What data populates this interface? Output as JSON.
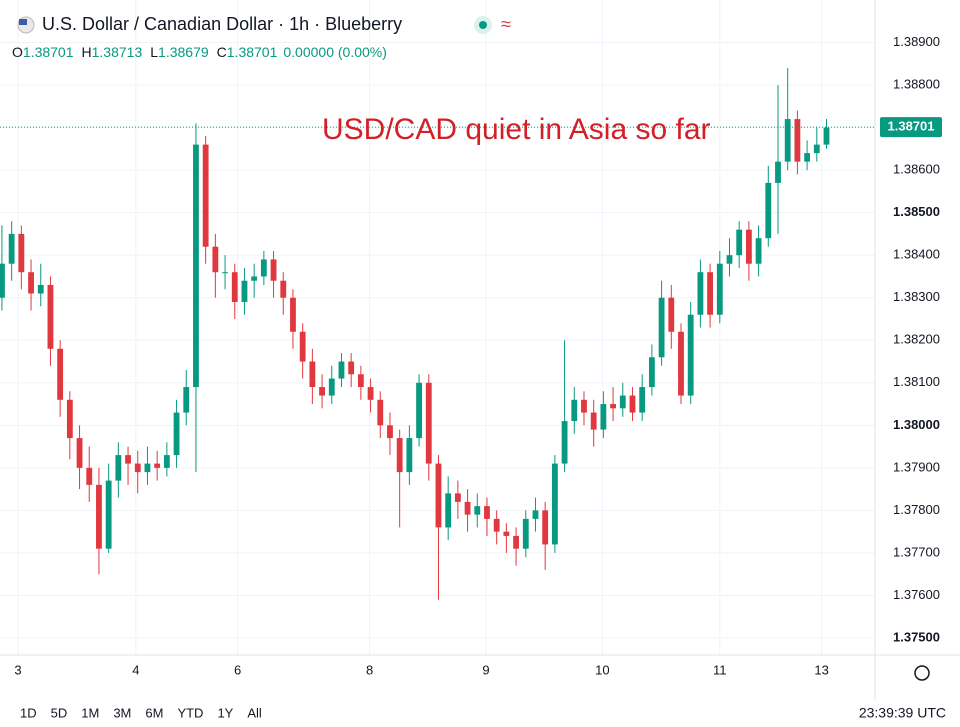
{
  "header": {
    "title": "U.S. Dollar / Canadian Dollar · 1h · Blueberry",
    "ohlc": [
      {
        "key": "O",
        "value": "1.38701"
      },
      {
        "key": "H",
        "value": "1.38713"
      },
      {
        "key": "L",
        "value": "1.38679"
      },
      {
        "key": "C",
        "value": "1.38701"
      }
    ],
    "change": "0.00000 (0.00%)"
  },
  "chart_data": {
    "type": "candlestick",
    "annotation": "USD/CAD quiet in Asia so far",
    "last_price": 1.38701,
    "up_color": "#089981",
    "down_color": "#e0383e",
    "annotation_color": "#d32027",
    "open": [
      1.383,
      1.3838,
      1.3845,
      1.3836,
      1.3831,
      1.3833,
      1.3818,
      1.3806,
      1.3797,
      1.379,
      1.3786,
      1.3771,
      1.3787,
      1.3793,
      1.3791,
      1.3789,
      1.3791,
      1.379,
      1.3793,
      1.3803,
      1.3809,
      1.3866,
      1.3842,
      1.3836,
      1.3836,
      1.3829,
      1.3834,
      1.3835,
      1.3839,
      1.3834,
      1.383,
      1.3822,
      1.3815,
      1.3809,
      1.3807,
      1.3811,
      1.3815,
      1.3812,
      1.3809,
      1.3806,
      1.38,
      1.3797,
      1.3789,
      1.3797,
      1.381,
      1.3791,
      1.3776,
      1.3784,
      1.3782,
      1.3779,
      1.3781,
      1.3778,
      1.3775,
      1.3774,
      1.3771,
      1.3778,
      1.378,
      1.3772,
      1.3791,
      1.3801,
      1.3806,
      1.3803,
      1.3799,
      1.3805,
      1.3804,
      1.3807,
      1.3803,
      1.3809,
      1.3816,
      1.383,
      1.3822,
      1.3807,
      1.3826,
      1.3836,
      1.3826,
      1.3838,
      1.384,
      1.3846,
      1.3838,
      1.3844,
      1.3857,
      1.3862,
      1.3872,
      1.3862,
      1.3864,
      1.3866
    ],
    "high": [
      1.3847,
      1.3848,
      1.3847,
      1.3839,
      1.3838,
      1.3835,
      1.382,
      1.3808,
      1.38,
      1.3795,
      1.379,
      1.3791,
      1.3796,
      1.3795,
      1.3794,
      1.3795,
      1.3794,
      1.3796,
      1.3806,
      1.3813,
      1.3871,
      1.3868,
      1.3845,
      1.384,
      1.3838,
      1.3837,
      1.3838,
      1.3841,
      1.3841,
      1.3836,
      1.3832,
      1.3824,
      1.3818,
      1.3812,
      1.3814,
      1.3817,
      1.3817,
      1.3814,
      1.3811,
      1.3808,
      1.3803,
      1.3799,
      1.38,
      1.3812,
      1.3812,
      1.3793,
      1.3788,
      1.3787,
      1.3785,
      1.3784,
      1.3783,
      1.378,
      1.3777,
      1.3776,
      1.378,
      1.3783,
      1.3782,
      1.3793,
      1.382,
      1.3809,
      1.3808,
      1.3806,
      1.3808,
      1.3809,
      1.381,
      1.3809,
      1.3812,
      1.3819,
      1.3834,
      1.3833,
      1.3824,
      1.3829,
      1.3839,
      1.3838,
      1.3841,
      1.3844,
      1.3848,
      1.3848,
      1.3847,
      1.3861,
      1.388,
      1.3884,
      1.3874,
      1.3867,
      1.387,
      1.3872
    ],
    "low": [
      1.3827,
      1.3834,
      1.3832,
      1.3827,
      1.3828,
      1.3814,
      1.3802,
      1.3792,
      1.3785,
      1.3782,
      1.3765,
      1.377,
      1.3783,
      1.3786,
      1.3784,
      1.3786,
      1.3787,
      1.3788,
      1.379,
      1.38,
      1.3789,
      1.3838,
      1.383,
      1.3832,
      1.3825,
      1.3826,
      1.383,
      1.3833,
      1.383,
      1.3826,
      1.3818,
      1.3811,
      1.3805,
      1.3804,
      1.3805,
      1.3809,
      1.3809,
      1.3806,
      1.3803,
      1.3797,
      1.3793,
      1.3776,
      1.3786,
      1.3795,
      1.3787,
      1.3759,
      1.3773,
      1.3778,
      1.3775,
      1.3776,
      1.3774,
      1.3772,
      1.377,
      1.3767,
      1.3769,
      1.3775,
      1.3766,
      1.377,
      1.3789,
      1.3798,
      1.38,
      1.3795,
      1.3797,
      1.3801,
      1.3802,
      1.3801,
      1.3801,
      1.3807,
      1.3814,
      1.3818,
      1.3805,
      1.3805,
      1.3823,
      1.3823,
      1.3824,
      1.3835,
      1.3837,
      1.3834,
      1.3835,
      1.3842,
      1.3845,
      1.386,
      1.3859,
      1.386,
      1.3862,
      1.3865
    ],
    "close": [
      1.3838,
      1.3845,
      1.3836,
      1.3831,
      1.3833,
      1.3818,
      1.3806,
      1.3797,
      1.379,
      1.3786,
      1.3771,
      1.3787,
      1.3793,
      1.3791,
      1.3789,
      1.3791,
      1.379,
      1.3793,
      1.3803,
      1.3809,
      1.3866,
      1.3842,
      1.3836,
      1.3836,
      1.3829,
      1.3834,
      1.3835,
      1.3839,
      1.3834,
      1.383,
      1.3822,
      1.3815,
      1.3809,
      1.3807,
      1.3811,
      1.3815,
      1.3812,
      1.3809,
      1.3806,
      1.38,
      1.3797,
      1.3789,
      1.3797,
      1.381,
      1.3791,
      1.3776,
      1.3784,
      1.3782,
      1.3779,
      1.3781,
      1.3778,
      1.3775,
      1.3774,
      1.3771,
      1.3778,
      1.378,
      1.3772,
      1.3791,
      1.3801,
      1.3806,
      1.3803,
      1.3799,
      1.3805,
      1.3804,
      1.3807,
      1.3803,
      1.3809,
      1.3816,
      1.383,
      1.3822,
      1.3807,
      1.3826,
      1.3836,
      1.3826,
      1.3838,
      1.384,
      1.3846,
      1.3838,
      1.3844,
      1.3857,
      1.3862,
      1.3872,
      1.3862,
      1.3864,
      1.3866,
      1.387
    ],
    "xlim": [
      -0.2,
      90
    ],
    "xticks": [
      {
        "value": 1.65,
        "label": "3"
      },
      {
        "value": 13.8,
        "label": "4"
      },
      {
        "value": 24.3,
        "label": "6"
      },
      {
        "value": 37.9,
        "label": "8"
      },
      {
        "value": 49.9,
        "label": "9"
      },
      {
        "value": 61.9,
        "label": "10"
      },
      {
        "value": 74.0,
        "label": "11"
      },
      {
        "value": 84.5,
        "label": "13"
      }
    ],
    "ylim": [
      1.3746,
      1.39
    ],
    "yticks": [
      {
        "value": 1.375,
        "label": "1.37500"
      },
      {
        "value": 1.376,
        "label": "1.37600"
      },
      {
        "value": 1.377,
        "label": "1.37700"
      },
      {
        "value": 1.378,
        "label": "1.37800"
      },
      {
        "value": 1.379,
        "label": "1.37900"
      },
      {
        "value": 1.38,
        "label": "1.38000"
      },
      {
        "value": 1.381,
        "label": "1.38100"
      },
      {
        "value": 1.382,
        "label": "1.38200"
      },
      {
        "value": 1.383,
        "label": "1.38300"
      },
      {
        "value": 1.384,
        "label": "1.38400"
      },
      {
        "value": 1.385,
        "label": "1.38500"
      },
      {
        "value": 1.386,
        "label": "1.38600"
      },
      {
        "value": 1.387,
        "label": "1.38700"
      },
      {
        "value": 1.388,
        "label": "1.38800"
      },
      {
        "value": 1.389,
        "label": "1.38900"
      }
    ],
    "grid": true
  },
  "footer": {
    "periods": [
      "1D",
      "5D",
      "1M",
      "3M",
      "6M",
      "YTD",
      "1Y",
      "All"
    ],
    "time": "23:39:39 UTC"
  }
}
